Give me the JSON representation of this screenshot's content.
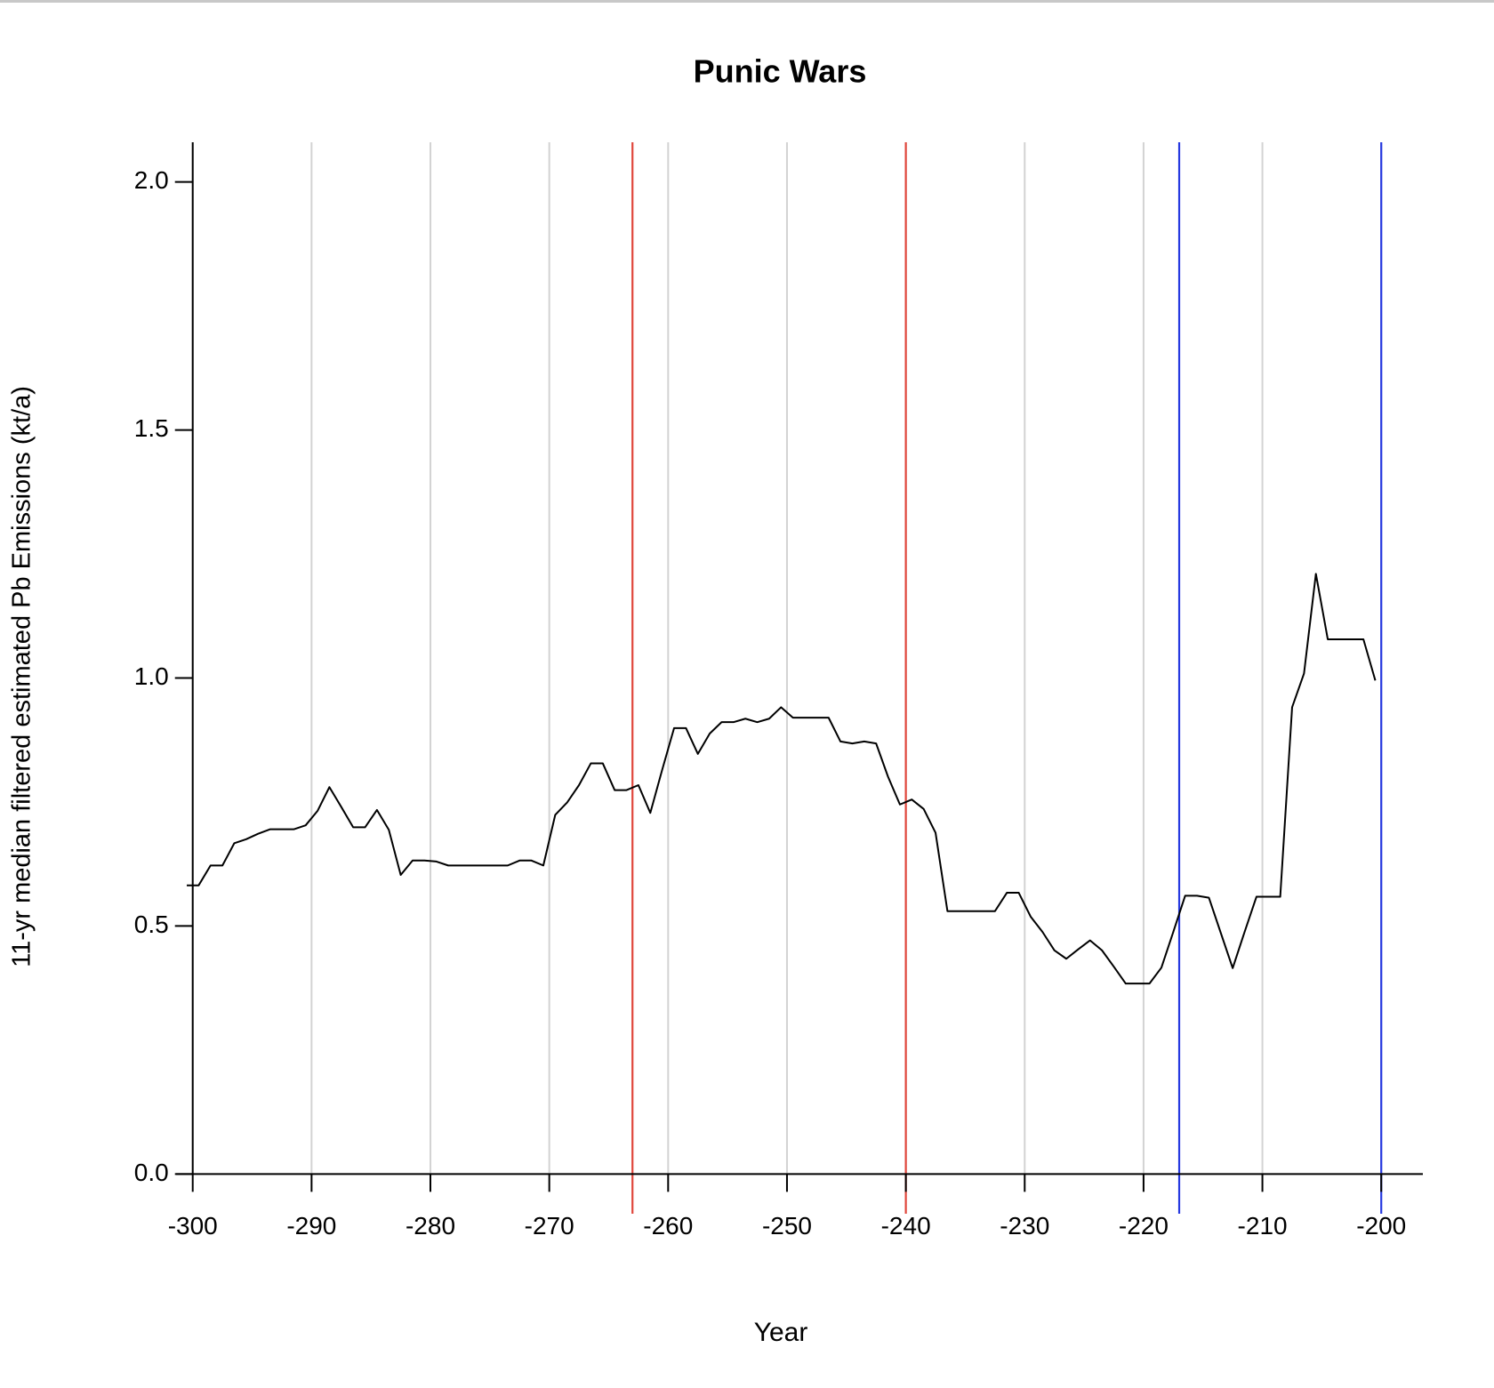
{
  "chart_data": {
    "type": "line",
    "title": "Punic Wars",
    "xlabel": "Year",
    "ylabel": "11-yr median filtered estimated Pb Emissions (kt/a)",
    "x": [
      -300.5,
      -299.5,
      -298.5,
      -297.5,
      -296.5,
      -295.5,
      -294.5,
      -293.5,
      -292.5,
      -291.5,
      -290.5,
      -289.5,
      -288.5,
      -287.5,
      -286.5,
      -285.5,
      -284.5,
      -283.5,
      -282.5,
      -281.5,
      -280.5,
      -279.5,
      -278.5,
      -277.5,
      -276.5,
      -275.5,
      -274.5,
      -273.5,
      -272.5,
      -271.5,
      -270.5,
      -269.5,
      -268.5,
      -267.5,
      -266.5,
      -265.5,
      -264.5,
      -263.5,
      -262.5,
      -261.5,
      -260.5,
      -259.5,
      -258.5,
      -257.5,
      -256.5,
      -255.5,
      -254.5,
      -253.5,
      -252.5,
      -251.5,
      -250.5,
      -249.5,
      -248.5,
      -247.5,
      -246.5,
      -245.5,
      -244.5,
      -243.5,
      -242.5,
      -241.5,
      -240.5,
      -239.5,
      -238.5,
      -237.5,
      -236.5,
      -235.5,
      -234.5,
      -233.5,
      -232.5,
      -231.5,
      -230.5,
      -229.5,
      -228.5,
      -227.5,
      -226.5,
      -225.5,
      -224.5,
      -223.5,
      -222.5,
      -221.5,
      -220.5,
      -219.5,
      -218.5,
      -217.5,
      -216.5,
      -215.5,
      -214.5,
      -213.5,
      -212.5,
      -211.5,
      -210.5,
      -209.5,
      -208.5,
      -207.5,
      -206.5,
      -205.5,
      -204.5,
      -203.5,
      -202.5,
      -201.5,
      -200.5
    ],
    "series": [
      {
        "color": "#000000",
        "values": [
          0.582,
          0.582,
          0.622,
          0.622,
          0.667,
          0.675,
          0.686,
          0.695,
          0.695,
          0.695,
          0.703,
          0.732,
          0.78,
          0.74,
          0.699,
          0.699,
          0.734,
          0.694,
          0.603,
          0.632,
          0.632,
          0.63,
          0.622,
          0.622,
          0.622,
          0.622,
          0.622,
          0.622,
          0.632,
          0.632,
          0.622,
          0.724,
          0.749,
          0.784,
          0.828,
          0.828,
          0.774,
          0.774,
          0.784,
          0.728,
          0.815,
          0.899,
          0.899,
          0.847,
          0.888,
          0.911,
          0.911,
          0.918,
          0.911,
          0.918,
          0.941,
          0.92,
          0.92,
          0.92,
          0.92,
          0.872,
          0.868,
          0.872,
          0.868,
          0.801,
          0.745,
          0.755,
          0.736,
          0.688,
          0.53,
          0.53,
          0.53,
          0.53,
          0.53,
          0.567,
          0.567,
          0.519,
          0.488,
          0.451,
          0.434,
          0.453,
          0.471,
          0.451,
          0.418,
          0.384,
          0.384,
          0.384,
          0.416,
          0.488,
          0.561,
          0.561,
          0.557,
          0.486,
          0.415,
          0.488,
          0.559,
          0.559,
          0.559,
          0.941,
          1.009,
          1.21,
          1.078,
          1.078,
          1.078,
          1.078,
          0.995
        ]
      }
    ],
    "vlines": [
      {
        "x": -263,
        "color": "#e0463c"
      },
      {
        "x": -240,
        "color": "#e0463c"
      },
      {
        "x": -217,
        "color": "#2639e0"
      },
      {
        "x": -200,
        "color": "#2639e0"
      }
    ],
    "xlim": [
      -301.4,
      -196.5
    ],
    "ylim": [
      -0.08,
      2.08
    ],
    "xticks": [
      -300,
      -290,
      -280,
      -270,
      -260,
      -250,
      -240,
      -230,
      -220,
      -210,
      -200
    ],
    "yticks": [
      {
        "value": 0,
        "label": "0.0"
      },
      0.5,
      {
        "value": 1,
        "label": "1.0"
      },
      1.5,
      {
        "value": 2,
        "label": "2.0"
      }
    ],
    "grid": true,
    "grid_color": "#d3d3d3"
  }
}
